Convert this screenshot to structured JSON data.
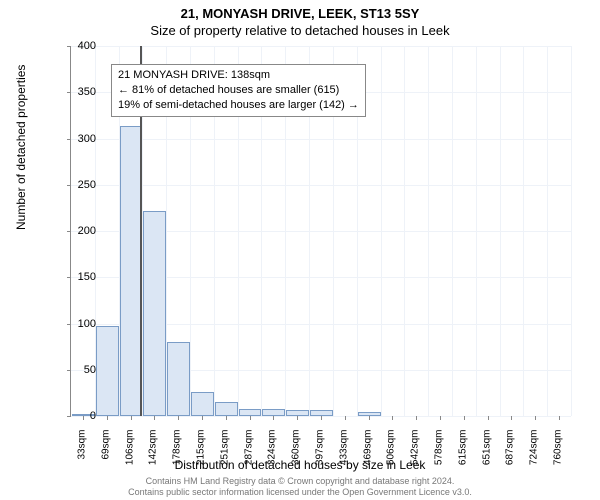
{
  "chart": {
    "type": "histogram",
    "title_main": "21, MONYASH DRIVE, LEEK, ST13 5SY",
    "title_sub": "Size of property relative to detached houses in Leek",
    "y_axis_label": "Number of detached properties",
    "x_axis_label": "Distribution of detached houses by size in Leek",
    "ylim": [
      0,
      400
    ],
    "ytick_step": 50,
    "y_ticks": [
      0,
      50,
      100,
      150,
      200,
      250,
      300,
      350,
      400
    ],
    "x_labels": [
      "33sqm",
      "69sqm",
      "106sqm",
      "142sqm",
      "178sqm",
      "215sqm",
      "251sqm",
      "287sqm",
      "324sqm",
      "360sqm",
      "397sqm",
      "433sqm",
      "469sqm",
      "506sqm",
      "542sqm",
      "578sqm",
      "615sqm",
      "651sqm",
      "687sqm",
      "724sqm",
      "760sqm"
    ],
    "values": [
      1,
      97,
      313,
      222,
      80,
      26,
      15,
      8,
      8,
      6,
      6,
      0,
      4,
      0,
      0,
      0,
      0,
      0,
      0,
      0,
      0
    ],
    "bar_fill": "#dbe6f4",
    "bar_border": "#7a9cc6",
    "grid_color": "#eef2f8",
    "ref_line_x_label": "142sqm",
    "ref_line_color": "#555555",
    "annotation": {
      "line1": "21 MONYASH DRIVE: 138sqm",
      "line2": "← 81% of detached houses are smaller (615)",
      "line3": "19% of semi-detached houses are larger (142) →",
      "border_color": "#888888",
      "fontsize": 11
    },
    "plot_bg": "#ffffff"
  },
  "footer": {
    "line1": "Contains HM Land Registry data © Crown copyright and database right 2024.",
    "line2": "Contains public sector information licensed under the Open Government Licence v3.0."
  }
}
